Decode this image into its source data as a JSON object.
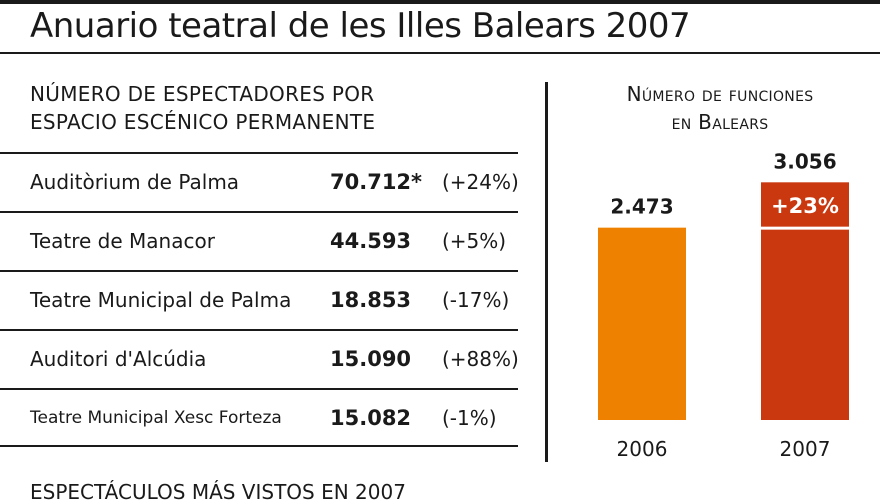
{
  "title": "Anuario teatral de les Illes Balears 2007",
  "table_section": {
    "heading_line1": "NÚMERO DE ESPECTADORES POR",
    "heading_line2": "ESPACIO ESCÉNICO PERMANENTE",
    "rows": [
      {
        "name": "Auditòrium de Palma",
        "value": "70.712*",
        "change": "(+24%)"
      },
      {
        "name": "Teatre de Manacor",
        "value": "44.593",
        "change": "(+5%)"
      },
      {
        "name": "Teatre Municipal de Palma",
        "value": "18.853",
        "change": "(-17%)"
      },
      {
        "name": "Auditori d'Alcúdia",
        "value": "15.090",
        "change": "(+88%)"
      },
      {
        "name": "Teatre Municipal Xesc Forteza",
        "value": "15.082",
        "change": "(-1%)"
      }
    ]
  },
  "chart_section": {
    "heading_line1": "Número de funciones",
    "heading_line2": "en Balears"
  },
  "chart_data": {
    "type": "bar",
    "categories": [
      "2006",
      "2007"
    ],
    "values": [
      2473,
      3056
    ],
    "value_labels": [
      "2.473",
      "3.056"
    ],
    "colors": [
      "#ee8100",
      "#c9380f"
    ],
    "annotation": "+23%",
    "annotation_color": "#ffffff",
    "ylim": [
      0,
      3600
    ]
  },
  "bottom_heading": "ESPECTÁCULOS MÁS VISTOS EN 2007"
}
